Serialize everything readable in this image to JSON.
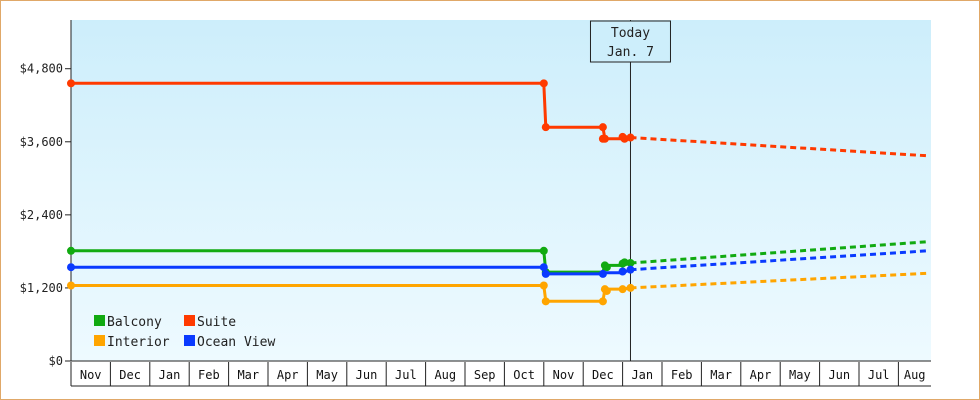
{
  "chart_data": {
    "type": "line",
    "style": "step",
    "x_axis": {
      "month_labels": [
        "Nov",
        "Dec",
        "Jan",
        "Feb",
        "Mar",
        "Apr",
        "May",
        "Jun",
        "Jul",
        "Aug",
        "Sep",
        "Oct",
        "Nov",
        "Dec",
        "Jan",
        "Feb",
        "Mar",
        "Apr",
        "May",
        "Jun",
        "Jul",
        "Aug"
      ],
      "range_months": [
        0,
        21.75
      ]
    },
    "y_axis": {
      "ticks": [
        0,
        1200,
        2400,
        3600,
        4800
      ],
      "tick_labels": [
        "$0",
        "$1,200",
        "$2,400",
        "$3,600",
        "$4,800"
      ],
      "range": [
        0,
        5600
      ]
    },
    "background": {
      "top_color": "#cdeefb",
      "bottom_color": "#eefaff"
    },
    "today": {
      "line1": "Today",
      "line2": "Jan. 7",
      "x": 14.2
    },
    "legend": {
      "position": "bottom-left",
      "order": [
        "Balcony",
        "Suite",
        "Interior",
        "Ocean View"
      ]
    },
    "series": [
      {
        "name": "Suite",
        "color": "#ff3a00",
        "history": [
          [
            0,
            4560
          ],
          [
            12.0,
            4560
          ],
          [
            12.05,
            3840
          ],
          [
            13.5,
            3840
          ],
          [
            13.55,
            3650
          ],
          [
            14.0,
            3650
          ],
          [
            14.2,
            3670
          ]
        ],
        "points": [
          [
            0,
            4560
          ],
          [
            12.0,
            4560
          ],
          [
            12.05,
            3840
          ],
          [
            13.5,
            3840
          ],
          [
            13.5,
            3650
          ],
          [
            13.55,
            3650
          ],
          [
            14.0,
            3680
          ],
          [
            14.05,
            3650
          ],
          [
            14.2,
            3670
          ]
        ],
        "forecast": [
          [
            14.2,
            3670
          ],
          [
            21.75,
            3370
          ]
        ]
      },
      {
        "name": "Balcony",
        "color": "#11aa11",
        "history": [
          [
            0,
            1810
          ],
          [
            12.0,
            1810
          ],
          [
            12.05,
            1460
          ],
          [
            13.5,
            1460
          ],
          [
            13.55,
            1570
          ],
          [
            14.0,
            1570
          ],
          [
            14.2,
            1610
          ]
        ],
        "points": [
          [
            0,
            1810
          ],
          [
            12.0,
            1810
          ],
          [
            12.05,
            1460
          ],
          [
            13.55,
            1570
          ],
          [
            13.6,
            1540
          ],
          [
            14.0,
            1600
          ],
          [
            14.05,
            1620
          ],
          [
            14.2,
            1610
          ]
        ],
        "forecast": [
          [
            14.2,
            1610
          ],
          [
            21.75,
            1960
          ]
        ]
      },
      {
        "name": "Ocean View",
        "color": "#0a3aff",
        "history": [
          [
            0,
            1540
          ],
          [
            12.0,
            1540
          ],
          [
            12.05,
            1430
          ],
          [
            13.5,
            1430
          ],
          [
            13.55,
            1450
          ],
          [
            14.0,
            1450
          ],
          [
            14.2,
            1500
          ]
        ],
        "points": [
          [
            0,
            1540
          ],
          [
            12.0,
            1540
          ],
          [
            12.05,
            1430
          ],
          [
            13.5,
            1430
          ],
          [
            14.0,
            1470
          ],
          [
            14.2,
            1500
          ]
        ],
        "forecast": [
          [
            14.2,
            1500
          ],
          [
            21.75,
            1810
          ]
        ]
      },
      {
        "name": "Interior",
        "color": "#ffa500",
        "history": [
          [
            0,
            1240
          ],
          [
            12.0,
            1240
          ],
          [
            12.05,
            980
          ],
          [
            13.5,
            980
          ],
          [
            13.55,
            1180
          ],
          [
            14.0,
            1180
          ],
          [
            14.2,
            1200
          ]
        ],
        "points": [
          [
            0,
            1240
          ],
          [
            12.0,
            1240
          ],
          [
            12.05,
            980
          ],
          [
            13.5,
            980
          ],
          [
            13.55,
            1180
          ],
          [
            13.6,
            1150
          ],
          [
            14.0,
            1180
          ],
          [
            14.2,
            1200
          ]
        ],
        "forecast": [
          [
            14.2,
            1200
          ],
          [
            21.75,
            1440
          ]
        ]
      }
    ]
  }
}
